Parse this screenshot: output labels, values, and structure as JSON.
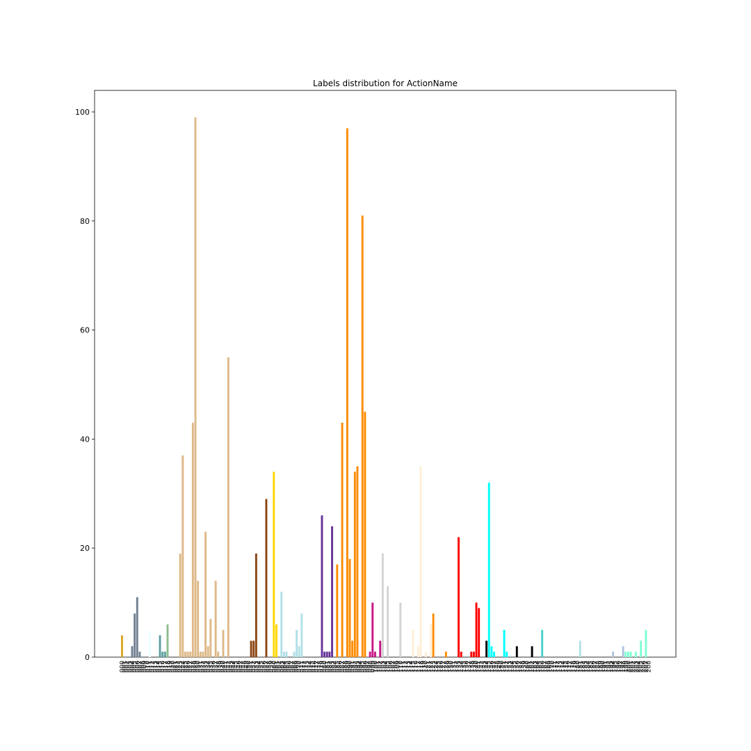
{
  "chart_data": {
    "type": "bar",
    "title": "Labels distribution for ActionName",
    "categories": [
      "000",
      "001",
      "002",
      "003",
      "004",
      "005",
      "006",
      "007",
      "008",
      "009",
      "010",
      "011",
      "012",
      "013",
      "014",
      "015",
      "016",
      "017",
      "018",
      "019",
      "020",
      "021",
      "022",
      "023",
      "024",
      "025",
      "026",
      "027",
      "028",
      "029",
      "030",
      "031",
      "032",
      "033",
      "034",
      "035",
      "036",
      "037",
      "038",
      "039",
      "040",
      "041",
      "042",
      "043",
      "044",
      "045",
      "046",
      "047",
      "048",
      "049",
      "050",
      "051",
      "052",
      "053",
      "054",
      "055",
      "056",
      "057",
      "058",
      "059",
      "060",
      "061",
      "062",
      "063",
      "064",
      "065",
      "066",
      "067",
      "068",
      "069",
      "070",
      "071",
      "072",
      "073",
      "074",
      "075",
      "076",
      "077",
      "078",
      "079",
      "080",
      "081",
      "082",
      "083",
      "084",
      "085",
      "086",
      "087",
      "088",
      "089",
      "090",
      "091",
      "092",
      "093",
      "094",
      "095",
      "096",
      "097",
      "098",
      "099",
      "100",
      "101",
      "102",
      "103",
      "104",
      "105",
      "106",
      "107",
      "108",
      "109",
      "110",
      "111",
      "112",
      "113",
      "114",
      "115",
      "116",
      "117",
      "118",
      "119",
      "120",
      "121",
      "122",
      "123",
      "124",
      "125",
      "126",
      "127",
      "128",
      "129",
      "130",
      "131",
      "132",
      "133",
      "134",
      "135",
      "136",
      "137",
      "138",
      "139",
      "140",
      "141",
      "142",
      "143",
      "144",
      "145",
      "146",
      "147",
      "148",
      "149",
      "150",
      "151",
      "152",
      "153",
      "154",
      "155",
      "156",
      "157",
      "158",
      "159",
      "160",
      "161",
      "162",
      "163",
      "164",
      "165",
      "166",
      "167",
      "168",
      "169",
      "170",
      "171",
      "172",
      "173",
      "174",
      "175",
      "176",
      "177",
      "178",
      "179",
      "180",
      "181",
      "182",
      "183",
      "184",
      "185",
      "186",
      "187",
      "188",
      "189",
      "190",
      "191",
      "192",
      "193",
      "194",
      "195",
      "196",
      "197",
      "198",
      "199",
      "200",
      "201",
      "202",
      "203",
      "204",
      "205",
      "206",
      "207",
      "208"
    ],
    "values": [
      4,
      0,
      0,
      0,
      2,
      8,
      11,
      1,
      0,
      0,
      0,
      5,
      0,
      0,
      0,
      4,
      1,
      1,
      6,
      0,
      0,
      0,
      0,
      19,
      37,
      1,
      1,
      1,
      43,
      99,
      14,
      1,
      1,
      23,
      2,
      7,
      0,
      14,
      1,
      0,
      5,
      0,
      55,
      0,
      0,
      0,
      0,
      0,
      0,
      0,
      0,
      3,
      3,
      19,
      0,
      0,
      0,
      29,
      0,
      0,
      34,
      6,
      0,
      12,
      1,
      1,
      0,
      0,
      1,
      5,
      2,
      8,
      0,
      0,
      0,
      0,
      0,
      0,
      0,
      26,
      1,
      1,
      1,
      24,
      0,
      17,
      0,
      43,
      0,
      97,
      18,
      3,
      34,
      35,
      0,
      81,
      45,
      0,
      1,
      10,
      1,
      0,
      3,
      19,
      0,
      13,
      0,
      0,
      0,
      0,
      10,
      0,
      0,
      0,
      0,
      5,
      0,
      2,
      35,
      0,
      1,
      0,
      6,
      8,
      0,
      0,
      0,
      0,
      1,
      0,
      0,
      0,
      0,
      22,
      1,
      0,
      0,
      0,
      1,
      1,
      10,
      9,
      0,
      0,
      3,
      32,
      2,
      1,
      0,
      0,
      0,
      5,
      1,
      0,
      0,
      0,
      2,
      0,
      0,
      0,
      0,
      0,
      2,
      0,
      0,
      0,
      5,
      0,
      0,
      0,
      0,
      0,
      0,
      0,
      0,
      0,
      0,
      0,
      0,
      0,
      0,
      3,
      0,
      0,
      0,
      0,
      0,
      0,
      0,
      0,
      0,
      0,
      0,
      0,
      1,
      0,
      0,
      0,
      2,
      1,
      1,
      1,
      0,
      1,
      0,
      3,
      0,
      5,
      0
    ],
    "colors": [
      "#daa520",
      "#daa520",
      "#daa520",
      "#daa520",
      "#708090",
      "#708090",
      "#708090",
      "#708090",
      "#708090",
      "#708090",
      "#708090",
      "#f0ffff",
      "#f0ffff",
      "#f0ffff",
      "#f0ffff",
      "#5f9ea0",
      "#5f9ea0",
      "#5f9ea0",
      "#8fbc8f",
      "#8fbc8f",
      "#8fbc8f",
      "#8fbc8f",
      "#8fbc8f",
      "#deb887",
      "#deb887",
      "#deb887",
      "#deb887",
      "#deb887",
      "#deb887",
      "#deb887",
      "#deb887",
      "#deb887",
      "#deb887",
      "#deb887",
      "#deb887",
      "#deb887",
      "#deb887",
      "#deb887",
      "#deb887",
      "#deb887",
      "#deb887",
      "#deb887",
      "#deb887",
      "#deb887",
      "#deb887",
      "#deb887",
      "#deb887",
      "#deb887",
      "#deb887",
      "#deb887",
      "#deb887",
      "#8b4513",
      "#8b4513",
      "#8b4513",
      "#8b4513",
      "#8b4513",
      "#8b4513",
      "#8b4513",
      "#8b4513",
      "#ffd700",
      "#ffd700",
      "#ffd700",
      "#ffd700",
      "#b0e0e6",
      "#b0e0e6",
      "#b0e0e6",
      "#b0e0e6",
      "#b0e0e6",
      "#b0e0e6",
      "#b0e0e6",
      "#b0e0e6",
      "#b0e0e6",
      "#b0e0e6",
      "#b0e0e6",
      "#b0e0e6",
      "#b0e0e6",
      "#b0e0e6",
      "#b0e0e6",
      "#b0e0e6",
      "#663399",
      "#663399",
      "#663399",
      "#663399",
      "#663399",
      "#663399",
      "#ff8c00",
      "#ff8c00",
      "#ff8c00",
      "#ff8c00",
      "#ff8c00",
      "#ff8c00",
      "#ff8c00",
      "#ff8c00",
      "#ff8c00",
      "#ff8c00",
      "#ff8c00",
      "#ff8c00",
      "#c71585",
      "#c71585",
      "#c71585",
      "#c71585",
      "#c71585",
      "#c71585",
      "#d3d3d3",
      "#d3d3d3",
      "#d3d3d3",
      "#d3d3d3",
      "#d3d3d3",
      "#d3d3d3",
      "#d3d3d3",
      "#d3d3d3",
      "#d3d3d3",
      "#d3d3d3",
      "#d3d3d3",
      "#d3d3d3",
      "#ffefd5",
      "#ffefd5",
      "#ffefd5",
      "#ffefd5",
      "#ffefd5",
      "#ffefd5",
      "#ffefd5",
      "#ffefd5",
      "#ff8c00",
      "#ff8c00",
      "#ff8c00",
      "#ff8c00",
      "#ff8c00",
      "#ff8c00",
      "#ff8c00",
      "#ff8c00",
      "#ff8c00",
      "#ff8c00",
      "#ff0000",
      "#ff0000",
      "#ff0000",
      "#ff0000",
      "#ff0000",
      "#ff0000",
      "#ff0000",
      "#ff0000",
      "#ff0000",
      "#ff0000",
      "#ff0000",
      "#000000",
      "#00ffff",
      "#00ffff",
      "#00ffff",
      "#00ffff",
      "#00ffff",
      "#00ffff",
      "#00ffff",
      "#00ffff",
      "#00ffff",
      "#00ffff",
      "#00ffff",
      "#000000",
      "#000000",
      "#000000",
      "#000000",
      "#000000",
      "#000000",
      "#000000",
      "#000000",
      "#000000",
      "#000000",
      "#48d1cc",
      "#48d1cc",
      "#48d1cc",
      "#48d1cc",
      "#48d1cc",
      "#48d1cc",
      "#48d1cc",
      "#48d1cc",
      "#48d1cc",
      "#48d1cc",
      "#48d1cc",
      "#48d1cc",
      "#48d1cc",
      "#48d1cc",
      "#48d1cc",
      "#b0e0e6",
      "#b0e0e6",
      "#b0e0e6",
      "#b0e0e6",
      "#b0e0e6",
      "#b0e0e6",
      "#b0e0e6",
      "#b0e0e6",
      "#b0e0e6",
      "#b0e0e6",
      "#b0e0e6",
      "#b0e0e6",
      "#b0e0e6",
      "#b0c4de",
      "#b0c4de",
      "#b0c4de",
      "#b0c4de",
      "#b0c4de",
      "#7fffd4",
      "#7fffd4",
      "#7fffd4",
      "#7fffd4",
      "#7fffd4",
      "#7fffd4",
      "#7fffd4",
      "#7fffd4",
      "#7fffd4",
      "#7fffd4"
    ],
    "ylim": [
      0,
      103.95
    ],
    "yticks": [
      0,
      20,
      40,
      60,
      80,
      100
    ],
    "grid": false
  }
}
